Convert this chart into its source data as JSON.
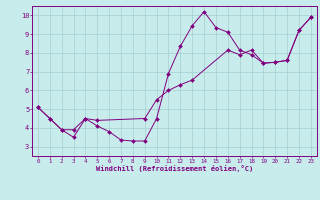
{
  "xlabel": "Windchill (Refroidissement éolien,°C)",
  "bg_color": "#c8ecec",
  "grid_color": "#aad4d4",
  "line_color": "#800080",
  "xlim": [
    -0.5,
    23.5
  ],
  "ylim": [
    2.5,
    10.5
  ],
  "xticks": [
    0,
    1,
    2,
    3,
    4,
    5,
    6,
    7,
    8,
    9,
    10,
    11,
    12,
    13,
    14,
    15,
    16,
    17,
    18,
    19,
    20,
    21,
    22,
    23
  ],
  "yticks": [
    3,
    4,
    5,
    6,
    7,
    8,
    9,
    10
  ],
  "line1_x": [
    0,
    1,
    2,
    3,
    4,
    5,
    6,
    7,
    8,
    9,
    10,
    11,
    12,
    13,
    14,
    15,
    16,
    17,
    18,
    19,
    20,
    21,
    22,
    23
  ],
  "line1_y": [
    5.1,
    4.5,
    3.9,
    3.5,
    4.5,
    4.1,
    3.8,
    3.35,
    3.3,
    3.3,
    4.5,
    6.9,
    8.35,
    9.45,
    10.2,
    9.35,
    9.1,
    8.15,
    7.9,
    7.45,
    7.5,
    7.6,
    9.2,
    9.9
  ],
  "line2_x": [
    0,
    1,
    2,
    3,
    4,
    5,
    9,
    10,
    11,
    12,
    13,
    16,
    17,
    18,
    19,
    20,
    21,
    22,
    23
  ],
  "line2_y": [
    5.1,
    4.5,
    3.9,
    3.9,
    4.5,
    4.4,
    4.5,
    5.5,
    6.0,
    6.3,
    6.55,
    8.15,
    7.9,
    8.15,
    7.45,
    7.5,
    7.6,
    9.2,
    9.9
  ]
}
